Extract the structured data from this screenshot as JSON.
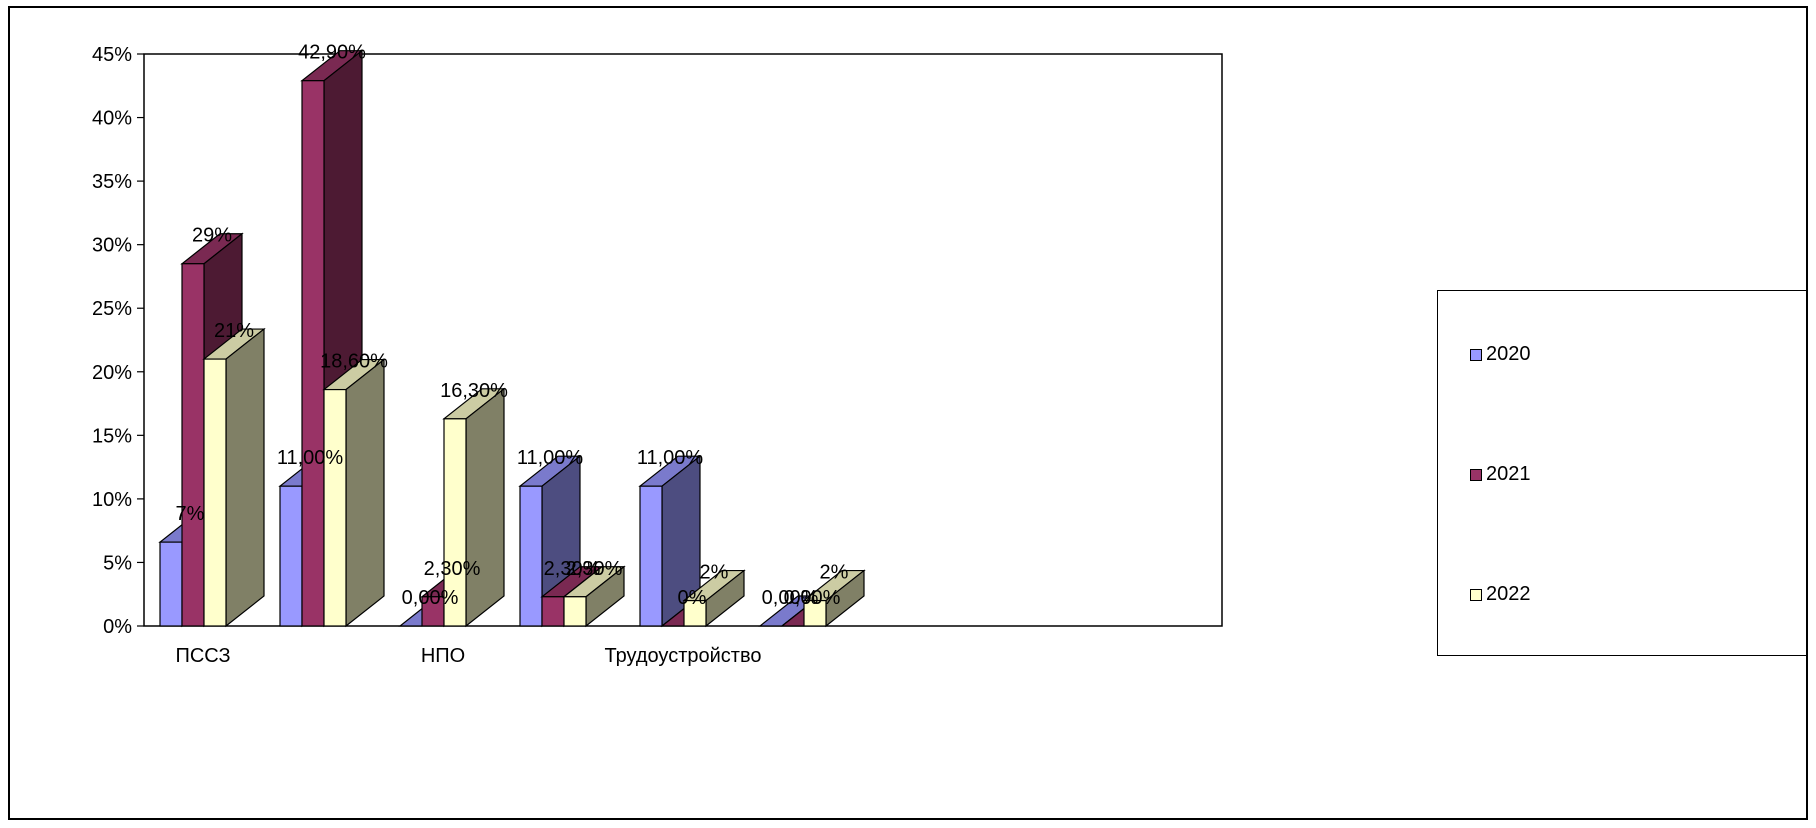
{
  "chart_data": {
    "type": "bar",
    "categories": [
      "ПССЗ",
      "",
      "НПО",
      "",
      "Трудоустройство",
      ""
    ],
    "series": [
      {
        "name": "2020",
        "color": "#9999ff",
        "values": [
          0.066,
          0.11,
          0,
          0.11,
          0.11,
          0
        ],
        "labels": [
          "7%",
          "11,00%",
          "",
          "11,00%",
          "11,00%",
          "0,00%"
        ]
      },
      {
        "name": "2021",
        "color": "#993366",
        "values": [
          0.285,
          0.429,
          0.023,
          0.023,
          0,
          0
        ],
        "labels": [
          "29%",
          "42,90%",
          "2,30%",
          "2,30%",
          "0%",
          "0,00%"
        ]
      },
      {
        "name": "2022",
        "color": "#ffffcc",
        "values": [
          0.21,
          0.186,
          0.163,
          0.023,
          0.02,
          0.02
        ],
        "labels": [
          "21%",
          "18,60%",
          "16,30%",
          "2,30%",
          "2%",
          "2%"
        ]
      }
    ],
    "extra_labels": [
      {
        "category": 2,
        "text": "0,00%"
      }
    ],
    "y_ticks": [
      "0%",
      "5%",
      "10%",
      "15%",
      "20%",
      "25%",
      "30%",
      "35%",
      "40%",
      "45%"
    ],
    "ylim": [
      0,
      0.45
    ],
    "legend": "right",
    "grid": false
  }
}
